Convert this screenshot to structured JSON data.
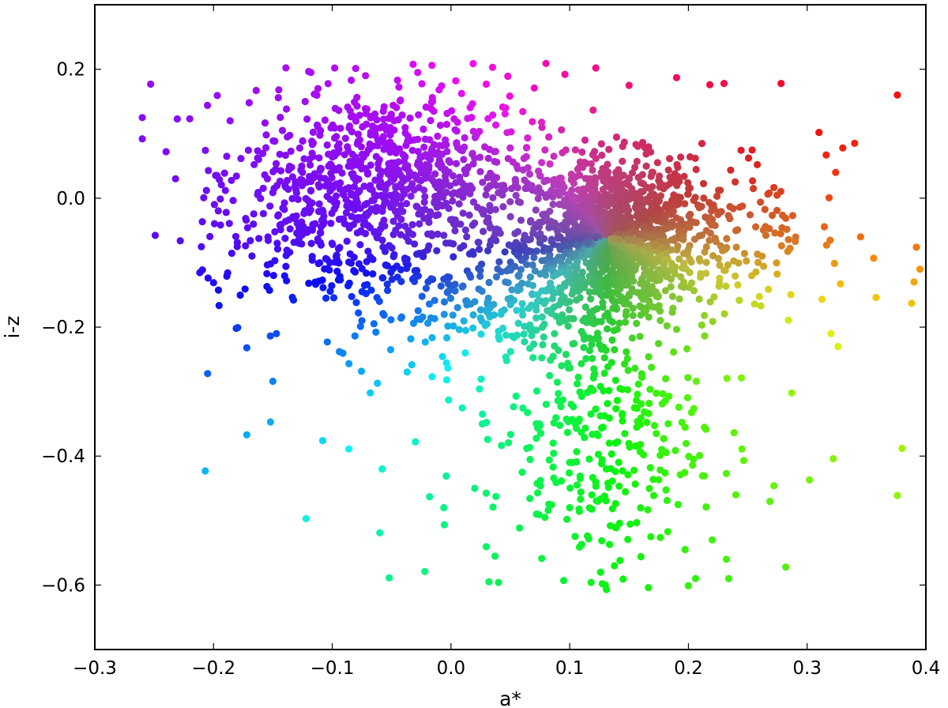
{
  "chart_data": {
    "type": "scatter",
    "title": "",
    "xlabel": "a*",
    "ylabel": "i-z",
    "xlim": [
      -0.3,
      0.4
    ],
    "ylim": [
      -0.7,
      0.3
    ],
    "xticks": [
      -0.3,
      -0.2,
      -0.1,
      0.0,
      0.1,
      0.2,
      0.3,
      0.4
    ],
    "xtick_labels": [
      "−0.3",
      "−0.2",
      "−0.1",
      "0.0",
      "0.1",
      "0.2",
      "0.3",
      "0.4"
    ],
    "yticks": [
      0.2,
      0.0,
      -0.2,
      -0.4,
      -0.6
    ],
    "ytick_labels": [
      "0.2",
      "0.0",
      "−0.2",
      "−0.4",
      "−0.6"
    ],
    "grid": false,
    "legend": "none",
    "color_encoding": "hue by position: purple (upper-left), red (upper-right), green (bottom), cyan (lower-left)",
    "points": [
      [
        -0.26,
        0.125
      ],
      [
        -0.26,
        0.092
      ],
      [
        -0.24,
        0.072
      ],
      [
        -0.232,
        0.03
      ],
      [
        -0.228,
        -0.066
      ],
      [
        -0.22,
        0.123
      ],
      [
        -0.206,
        0.012
      ],
      [
        -0.205,
        -0.272
      ],
      [
        -0.207,
        -0.423
      ],
      [
        -0.2,
        -0.131
      ],
      [
        -0.197,
        0.035
      ],
      [
        -0.19,
        0.012
      ],
      [
        -0.186,
        0.12
      ],
      [
        -0.18,
        -0.075
      ],
      [
        -0.172,
        -0.232
      ],
      [
        -0.172,
        -0.367
      ],
      [
        -0.17,
        0.148
      ],
      [
        -0.162,
        0.06
      ],
      [
        -0.155,
        -0.137
      ],
      [
        -0.152,
        -0.347
      ],
      [
        -0.15,
        -0.284
      ],
      [
        -0.147,
        -0.21
      ],
      [
        -0.145,
        0.168
      ],
      [
        -0.142,
        0.105
      ],
      [
        -0.128,
        -0.07
      ],
      [
        -0.122,
        -0.497
      ],
      [
        -0.118,
        0.195
      ],
      [
        -0.112,
        0.17
      ],
      [
        -0.108,
        -0.376
      ],
      [
        -0.102,
        -0.1
      ],
      [
        -0.098,
        0.202
      ],
      [
        -0.094,
        -0.238
      ],
      [
        -0.086,
        -0.389
      ],
      [
        -0.084,
        0.183
      ],
      [
        -0.075,
        -0.19
      ],
      [
        -0.072,
        0.19
      ],
      [
        -0.068,
        -0.302
      ],
      [
        -0.062,
        -0.287
      ],
      [
        -0.06,
        -0.519
      ],
      [
        -0.058,
        -0.42
      ],
      [
        -0.052,
        -0.589
      ],
      [
        -0.048,
        0.12
      ],
      [
        -0.045,
        0.183
      ],
      [
        -0.034,
        -0.055
      ],
      [
        -0.03,
        -0.378
      ],
      [
        -0.028,
        0.195
      ],
      [
        -0.022,
        -0.579
      ],
      [
        -0.018,
        -0.463
      ],
      [
        -0.016,
        0.206
      ],
      [
        -0.01,
        0.168
      ],
      [
        -0.006,
        -0.48
      ],
      [
        -0.004,
        -0.431
      ],
      [
        -0.002,
        -0.313
      ],
      [
        0.004,
        0.182
      ],
      [
        0.012,
        -0.24
      ],
      [
        0.02,
        -0.45
      ],
      [
        0.024,
        -0.296
      ],
      [
        0.032,
        -0.595
      ],
      [
        0.035,
        0.203
      ],
      [
        0.04,
        -0.596
      ],
      [
        0.046,
        0.14
      ],
      [
        0.06,
        -0.425
      ],
      [
        0.072,
        -0.49
      ],
      [
        0.08,
        0.209
      ],
      [
        0.095,
        -0.593
      ],
      [
        0.096,
        0.192
      ],
      [
        0.1,
        -0.48
      ],
      [
        0.11,
        -0.537
      ],
      [
        0.118,
        -0.596
      ],
      [
        0.122,
        0.202
      ],
      [
        0.126,
        -0.58
      ],
      [
        0.13,
        -0.6
      ],
      [
        0.15,
        0.175
      ],
      [
        0.16,
        -0.556
      ],
      [
        0.168,
        -0.418
      ],
      [
        0.19,
        0.187
      ],
      [
        0.2,
        -0.601
      ],
      [
        0.206,
        -0.59
      ],
      [
        0.218,
        0.176
      ],
      [
        0.22,
        -0.53
      ],
      [
        0.23,
        0.178
      ],
      [
        0.232,
        -0.56
      ],
      [
        0.234,
        -0.59
      ],
      [
        0.24,
        -0.46
      ],
      [
        0.245,
        -0.389
      ],
      [
        0.258,
        0.052
      ],
      [
        0.268,
        0.008
      ],
      [
        0.272,
        -0.446
      ],
      [
        0.278,
        0.178
      ],
      [
        0.282,
        -0.572
      ],
      [
        0.287,
        -0.302
      ],
      [
        0.29,
        -0.067
      ],
      [
        0.302,
        -0.437
      ],
      [
        0.31,
        0.102
      ],
      [
        0.316,
        0.067
      ],
      [
        0.32,
        -0.21
      ],
      [
        0.324,
        0.04
      ],
      [
        0.326,
        -0.23
      ],
      [
        0.33,
        0.078
      ],
      [
        0.328,
        -0.133
      ],
      [
        0.322,
        -0.404
      ],
      [
        0.34,
        0.085
      ],
      [
        0.345,
        -0.06
      ],
      [
        0.356,
        -0.093
      ],
      [
        0.358,
        -0.154
      ],
      [
        0.376,
        0.16
      ],
      [
        0.376,
        -0.461
      ],
      [
        0.38,
        -0.388
      ],
      [
        0.388,
        -0.163
      ],
      [
        0.39,
        -0.13
      ],
      [
        0.392,
        -0.076
      ],
      [
        0.395,
        -0.11
      ]
    ]
  }
}
